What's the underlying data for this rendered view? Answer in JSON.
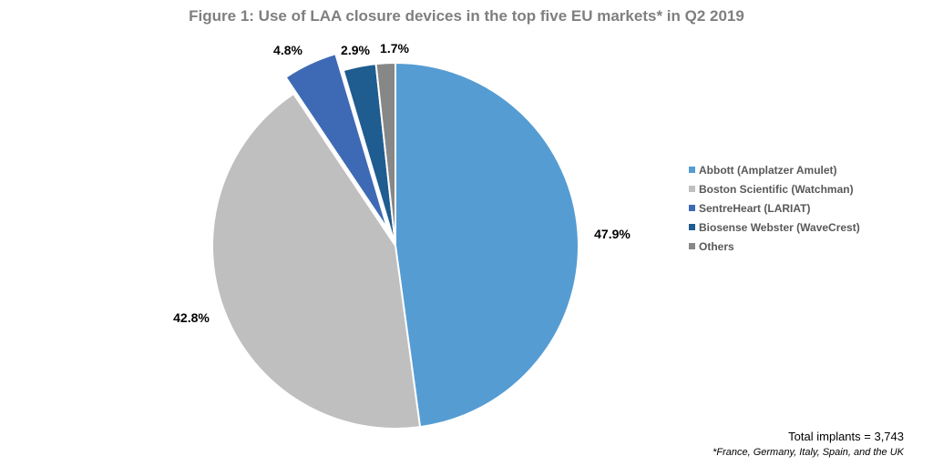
{
  "chart_data": {
    "type": "pie",
    "title": "Figure 1: Use of LAA closure devices in the top five EU markets* in Q2 2019",
    "slices": [
      {
        "name": "Abbott (Amplatzer Amulet)",
        "value": 47.9,
        "label": "47.9%",
        "color": "#559cd3"
      },
      {
        "name": "Boston Scientific (Watchman)",
        "value": 42.8,
        "label": "42.8%",
        "color": "#bfbfbf"
      },
      {
        "name": "SentreHeart (LARIAT)",
        "value": 4.8,
        "label": "4.8%",
        "color": "#3e6ab5",
        "exploded": true
      },
      {
        "name": "Biosense Webster (WaveCrest)",
        "value": 2.9,
        "label": "2.9%",
        "color": "#1f5c8f"
      },
      {
        "name": "Others",
        "value": 1.7,
        "label": "1.7%",
        "color": "#878787"
      }
    ],
    "start_angle": "12 o'clock",
    "direction": "clockwise",
    "legend_position": "right",
    "annotations": {
      "total": "Total implants = 3,743",
      "footnote": "*France, Germany, Italy, Spain, and the UK"
    }
  }
}
